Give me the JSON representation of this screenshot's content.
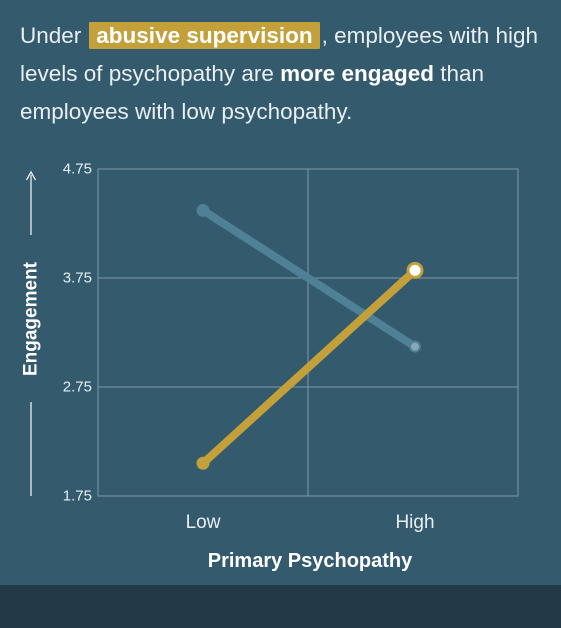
{
  "headline": {
    "prefix": "Under",
    "highlight": "abusive supervision",
    "middle": ", employees with high levels of psychopathy are",
    "emphasis": "more engaged",
    "suffix": "than employees with low psychopathy."
  },
  "chart_data": {
    "type": "line",
    "xlabel": "Primary Psychopathy",
    "ylabel": "Engagement",
    "categories": [
      "Low",
      "High"
    ],
    "ylim": [
      1.75,
      4.75
    ],
    "yticks": [
      "4.75",
      "3.75",
      "2.75",
      "1.75"
    ],
    "grid": true,
    "series": [
      {
        "values": [
          4.37,
          3.12
        ],
        "color": "#4e8196",
        "endpoint": "small-dot"
      },
      {
        "values": [
          2.05,
          3.82
        ],
        "color": "#c4a03a",
        "endpoint": "open-circle"
      }
    ]
  },
  "colors": {
    "background": "#335a6d",
    "footer": "#233947",
    "grid": "#7f9aa7",
    "highlight": "#c4a03a",
    "text": "#e9eff2"
  }
}
